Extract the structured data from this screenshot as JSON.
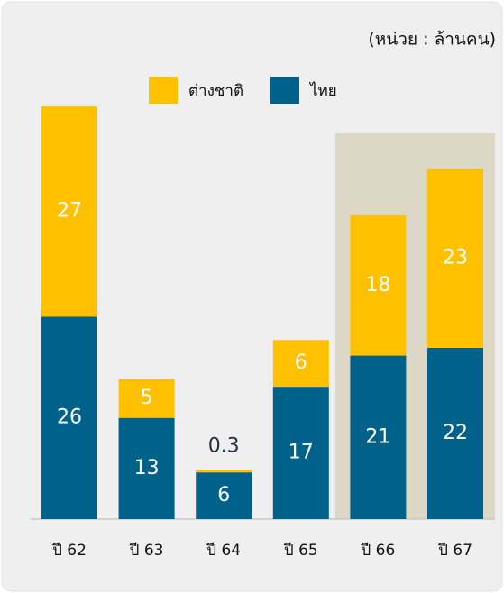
{
  "chart_data": {
    "type": "stacked-bar",
    "unit_label": "(หน่วย : ล้านคน)",
    "categories": [
      "ปี 62",
      "ปี 63",
      "ปี 64",
      "ปี 65",
      "ปี 66",
      "ปี 67"
    ],
    "series": [
      {
        "name": "ไทย",
        "color": "#00628a",
        "values": [
          26,
          13,
          6,
          17,
          21,
          22
        ]
      },
      {
        "name": "ต่างชาติ",
        "color": "#ffc000",
        "values": [
          27,
          5,
          0.3,
          6,
          18,
          23
        ]
      }
    ]
  }
}
